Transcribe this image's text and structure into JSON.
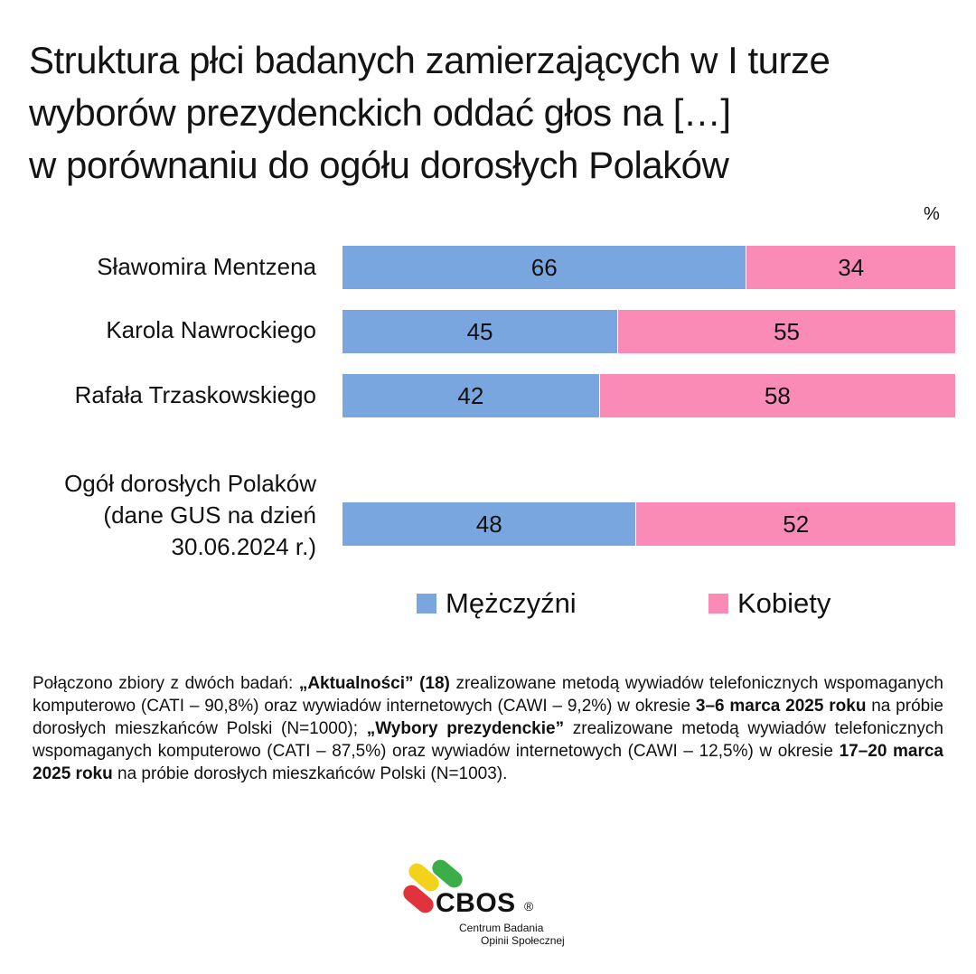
{
  "title_lines": [
    "Struktura płci badanych zamierzających w I turze",
    "wyborów prezydenckich oddać głos na […]",
    "w porównaniu do ogółu dorosłych Polaków"
  ],
  "unit": "%",
  "colors": {
    "men": "#7aa6e0",
    "women": "#f98bb6"
  },
  "chart_data": {
    "type": "bar",
    "orientation": "horizontal",
    "stacked": true,
    "title": "Struktura płci badanych zamierzających w I turze wyborów prezydenckich oddać głos na […] w porównaniu do ogółu dorosłych Polaków",
    "categories": [
      [
        "Sławomira Mentzena"
      ],
      [
        "Karola Nawrockiego"
      ],
      [
        "Rafała Trzaskowskiego"
      ],
      [
        "Ogół dorosłych Polaków",
        "(dane GUS na dzień",
        "30.06.2024 r.)"
      ]
    ],
    "series": [
      {
        "name": "Mężczyźni",
        "values": [
          66,
          45,
          42,
          48
        ]
      },
      {
        "name": "Kobiety",
        "values": [
          34,
          55,
          58,
          52
        ]
      }
    ],
    "xlim": [
      0,
      100
    ],
    "legend": "bottom"
  },
  "footnote": {
    "p1": "Połączono zbiory z dwóch badań: ",
    "b1": "„Aktualności” (18)",
    "p2": " zrealizowane metodą wywiadów telefonicznych wspomaganych komputerowo (CATI – 90,8%) oraz wywiadów internetowych (CAWI – 9,2%) w okresie ",
    "b2": "3–6 marca 2025 roku",
    "p3": " na próbie dorosłych mieszkańców Polski (N=1000);  ",
    "b3": "„Wybory prezydenckie”",
    "p4": " zrealizowane metodą wywiadów telefonicznych wspomaganych komputerowo (CATI – 87,5%) oraz wywiadów internetowych (CAWI – 12,5%) w okresie ",
    "b4": "17–20 marca 2025 roku",
    "p5": " na próbie dorosłych mieszkańców Polski (N=1003)."
  },
  "logo": {
    "name": "CBOS",
    "reg": "®",
    "sub1": "Centrum Badania",
    "sub2": "Opinii Społecznej"
  }
}
